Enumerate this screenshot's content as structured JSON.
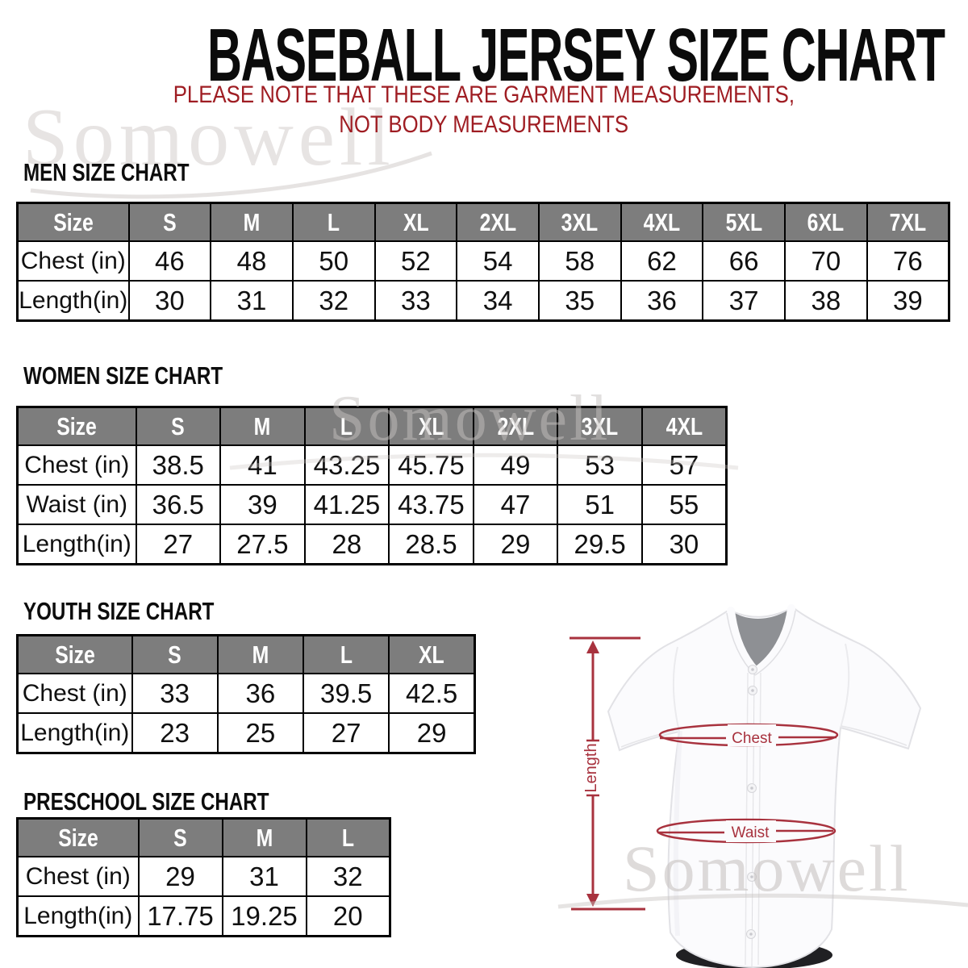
{
  "page": {
    "title": "BASEBALL JERSEY SIZE CHART",
    "subtitle_line1": "PLEASE NOTE THAT THESE ARE GARMENT MEASUREMENTS,",
    "subtitle_line2": "NOT BODY MEASUREMENTS",
    "watermark": "Somowell"
  },
  "tables": [
    {
      "id": "men",
      "heading": "MEN SIZE CHART",
      "columns": [
        "Size",
        "S",
        "M",
        "L",
        "XL",
        "2XL",
        "3XL",
        "4XL",
        "5XL",
        "6XL",
        "7XL"
      ],
      "rows": [
        {
          "label": "Chest (in)",
          "values": [
            "46",
            "48",
            "50",
            "52",
            "54",
            "58",
            "62",
            "66",
            "70",
            "76"
          ]
        },
        {
          "label": "Length(in)",
          "values": [
            "30",
            "31",
            "32",
            "33",
            "34",
            "35",
            "36",
            "37",
            "38",
            "39"
          ]
        }
      ]
    },
    {
      "id": "women",
      "heading": "WOMEN SIZE CHART",
      "columns": [
        "Size",
        "S",
        "M",
        "L",
        "XL",
        "2XL",
        "3XL",
        "4XL"
      ],
      "rows": [
        {
          "label": "Chest (in)",
          "values": [
            "38.5",
            "41",
            "43.25",
            "45.75",
            "49",
            "53",
            "57"
          ]
        },
        {
          "label": "Waist (in)",
          "values": [
            "36.5",
            "39",
            "41.25",
            "43.75",
            "47",
            "51",
            "55"
          ]
        },
        {
          "label": "Length(in)",
          "values": [
            "27",
            "27.5",
            "28",
            "28.5",
            "29",
            "29.5",
            "30"
          ]
        }
      ]
    },
    {
      "id": "youth",
      "heading": "YOUTH SIZE CHART",
      "columns": [
        "Size",
        "S",
        "M",
        "L",
        "XL"
      ],
      "rows": [
        {
          "label": "Chest (in)",
          "values": [
            "33",
            "36",
            "39.5",
            "42.5"
          ]
        },
        {
          "label": "Length(in)",
          "values": [
            "23",
            "25",
            "27",
            "29"
          ]
        }
      ]
    },
    {
      "id": "preschool",
      "heading": "PRESCHOOL SIZE CHART",
      "columns": [
        "Size",
        "S",
        "M",
        "L"
      ],
      "rows": [
        {
          "label": "Chest (in)",
          "values": [
            "29",
            "31",
            "32"
          ]
        },
        {
          "label": "Length(in)",
          "values": [
            "17.75",
            "19.25",
            "20"
          ]
        }
      ]
    }
  ],
  "diagram": {
    "length_label": "Length",
    "chest_label": "Chest",
    "waist_label": "Waist"
  },
  "colors": {
    "header_gray": "#7d7d7d",
    "table_border_black": "#000000",
    "subtitle_red": "#9f1d23",
    "annotation_red": "#a8323e",
    "watermark_gray": "#e7e4e3",
    "collar_gray": "#8e9094"
  }
}
